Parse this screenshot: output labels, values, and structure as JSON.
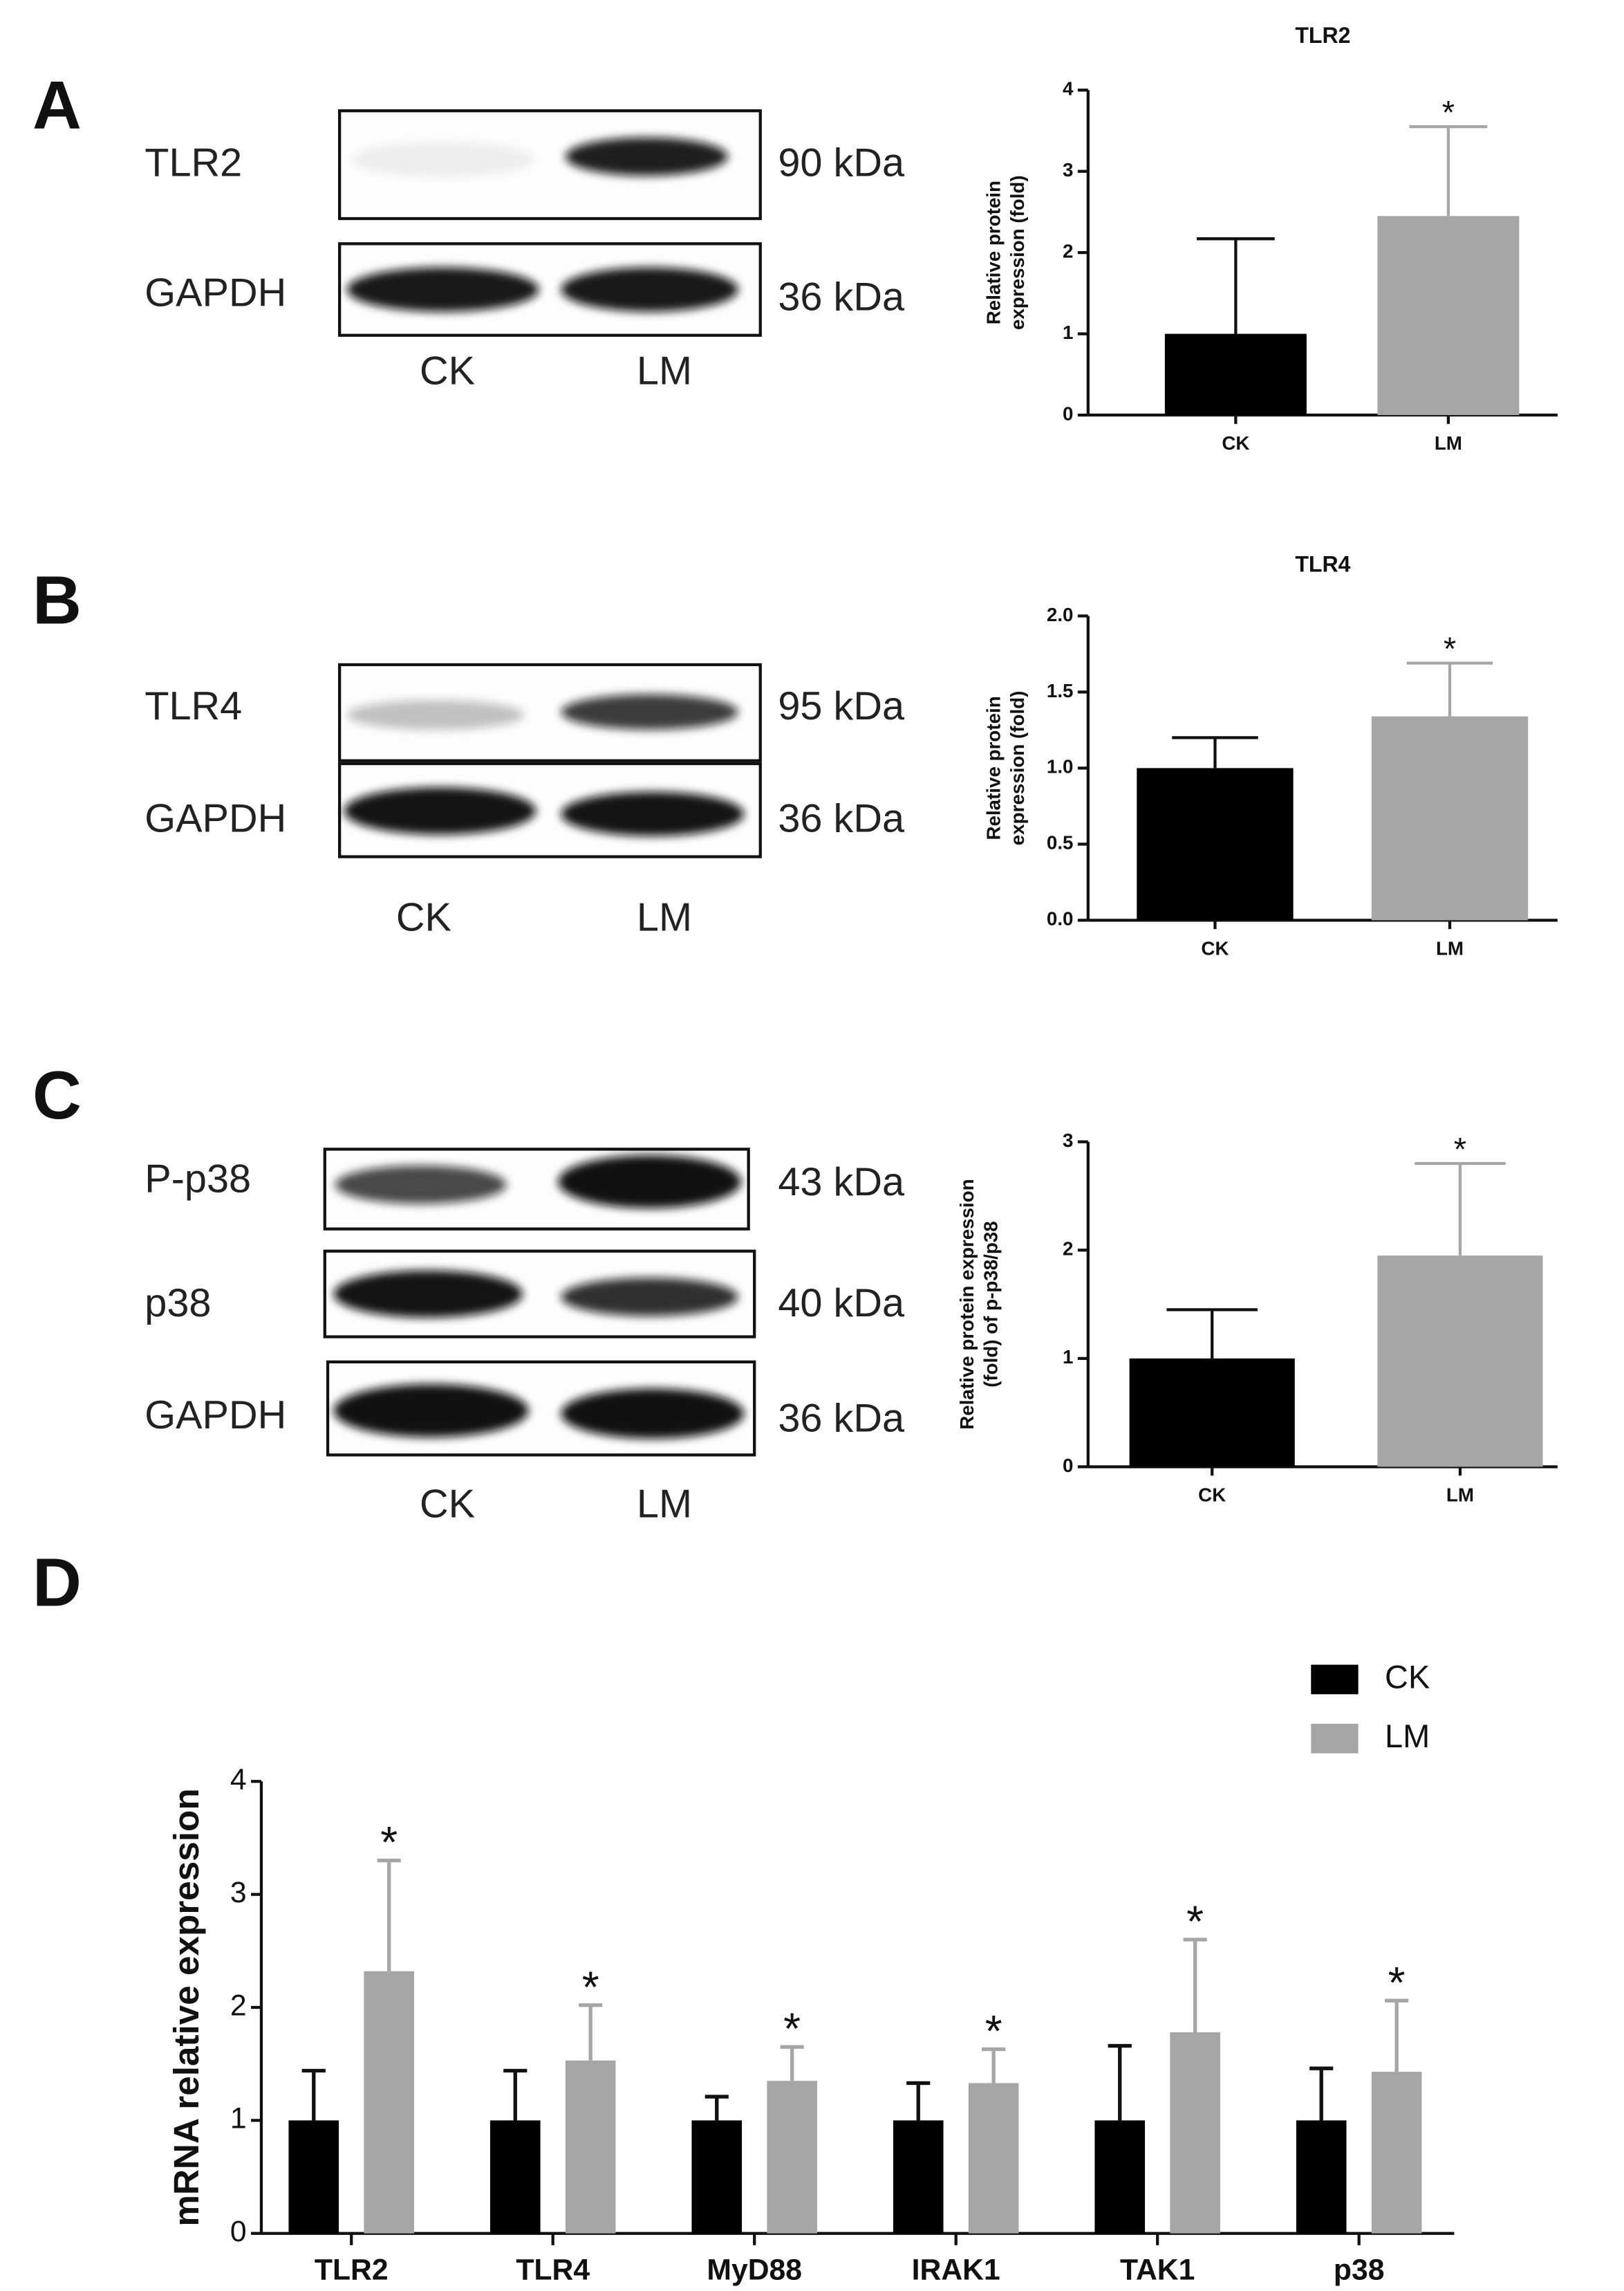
{
  "panels": [
    {
      "letter": "A",
      "blot": {
        "rows": [
          {
            "label": "TLR2",
            "size": "90 kDa"
          },
          {
            "label": "GAPDH",
            "size": "36 kDa"
          }
        ],
        "lanes": [
          "CK",
          "LM"
        ]
      }
    },
    {
      "letter": "B",
      "blot": {
        "rows": [
          {
            "label": "TLR4",
            "size": "95 kDa"
          },
          {
            "label": "GAPDH",
            "size": "36 kDa"
          }
        ],
        "lanes": [
          "CK",
          "LM"
        ]
      }
    },
    {
      "letter": "C",
      "blot": {
        "rows": [
          {
            "label": "P-p38",
            "size": "43 kDa"
          },
          {
            "label": "p38",
            "size": "40 kDa"
          },
          {
            "label": "GAPDH",
            "size": "36 kDa"
          }
        ],
        "lanes": [
          "CK",
          "LM"
        ]
      }
    },
    {
      "letter": "D"
    }
  ],
  "chart_data": [
    {
      "type": "bar",
      "title": "TLR2",
      "y_label": [
        "Relative protein",
        "expression (fold)"
      ],
      "categories": [
        "CK",
        "LM"
      ],
      "values": [
        1.0,
        2.45
      ],
      "errors": [
        1.17,
        1.1
      ],
      "colors": [
        "#000000",
        "#a6a6a6"
      ],
      "value_annotations": [
        null,
        "*"
      ],
      "ylim": [
        0,
        4
      ],
      "yticks": [
        0,
        1,
        2,
        3,
        4
      ]
    },
    {
      "type": "bar",
      "title": "TLR4",
      "y_label": [
        "Relative protein",
        "expression (fold)"
      ],
      "categories": [
        "CK",
        "LM"
      ],
      "values": [
        1.0,
        1.34
      ],
      "errors": [
        0.2,
        0.35
      ],
      "colors": [
        "#000000",
        "#a6a6a6"
      ],
      "value_annotations": [
        null,
        "*"
      ],
      "ylim": [
        0,
        2
      ],
      "yticks": [
        {
          "value": 0,
          "label": "0.0"
        },
        {
          "value": 0.5,
          "label": "0.5"
        },
        {
          "value": 1,
          "label": "1.0"
        },
        {
          "value": 1.5,
          "label": "1.5"
        },
        {
          "value": 2,
          "label": "2.0"
        }
      ]
    },
    {
      "type": "bar",
      "y_label": [
        "Relative protein expression",
        "(fold) of p-p38/p38"
      ],
      "categories": [
        "CK",
        "LM"
      ],
      "values": [
        1.0,
        1.95
      ],
      "errors": [
        0.45,
        0.85
      ],
      "colors": [
        "#000000",
        "#a6a6a6"
      ],
      "value_annotations": [
        null,
        "*"
      ],
      "ylim": [
        0,
        3
      ],
      "yticks": [
        0,
        1,
        2,
        3
      ]
    },
    {
      "type": "grouped_bar",
      "y_label": [
        "mRNA relative expression"
      ],
      "categories": [
        "TLR2",
        "TLR4",
        "MyD88",
        "IRAK1",
        "TAK1",
        "p38"
      ],
      "series": [
        {
          "name": "CK",
          "color": "#000000",
          "values": [
            1,
            1,
            1,
            1,
            1,
            1
          ],
          "errors": [
            0.44,
            0.44,
            0.21,
            0.33,
            0.66,
            0.46
          ]
        },
        {
          "name": "LM",
          "color": "#a6a6a6",
          "values": [
            2.32,
            1.53,
            1.35,
            1.33,
            1.78,
            1.43
          ],
          "errors": [
            0.98,
            0.49,
            0.3,
            0.3,
            0.82,
            0.63
          ],
          "annotations": [
            "*",
            "*",
            "*",
            "*",
            "*",
            "*"
          ]
        }
      ],
      "ylim": [
        0,
        4
      ],
      "yticks": [
        0,
        1,
        2,
        3,
        4
      ],
      "legend": "top-right"
    }
  ]
}
